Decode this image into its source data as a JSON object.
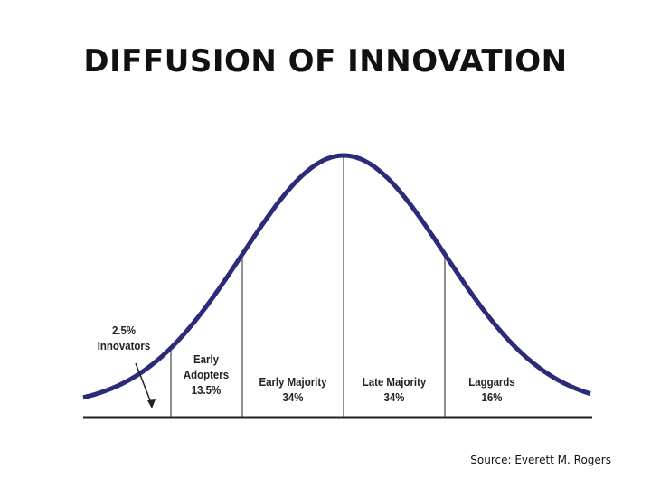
{
  "title": "DIFFUSION OF INNOVATION",
  "segments": [
    {
      "label": "Innovators",
      "share": "2.5%"
    },
    {
      "label": "Early Adopters",
      "share": "13.5%"
    },
    {
      "label": "Early Majority",
      "share": "34%"
    },
    {
      "label": "Late Majority",
      "share": "34%"
    },
    {
      "label": "Laggards",
      "share": "16%"
    }
  ],
  "source": "Source: Everett M. Rogers"
}
